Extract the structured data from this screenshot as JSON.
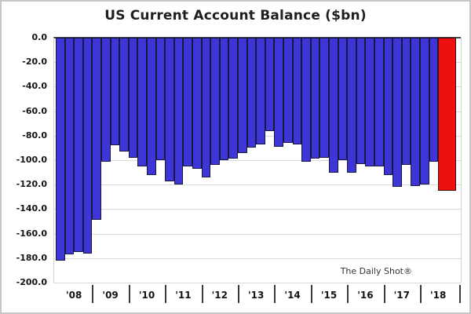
{
  "chart_data": {
    "type": "bar",
    "title": "US Current Account Balance ($bn)",
    "watermark": "The Daily Shot®",
    "ylabel": "",
    "xlabel": "",
    "ylim": [
      0,
      -200
    ],
    "ytick_step": 20,
    "grid": "horizontal",
    "legend": "none",
    "ytick_labels": [
      "0.0",
      "-20.0",
      "-40.0",
      "-60.0",
      "-80.0",
      "-100.0",
      "-120.0",
      "-140.0",
      "-160.0",
      "-180.0",
      "-200.0"
    ],
    "year_labels": [
      "'08",
      "'09",
      "'10",
      "'11",
      "'12",
      "'13",
      "'14",
      "'15",
      "'16",
      "'17",
      "'18"
    ],
    "colors": {
      "bar_fill": "#3e35d6",
      "bar_border": "#181843",
      "highlight_fill": "#ee100f",
      "highlight_border": "#3d0a0a",
      "gridline": "#dadada",
      "zero_line": "#4a4a4a",
      "text": "#141414"
    },
    "bars": [
      {
        "year": "2008",
        "quarter": "Q1",
        "value": -182
      },
      {
        "year": "2008",
        "quarter": "Q2",
        "value": -177
      },
      {
        "year": "2008",
        "quarter": "Q3",
        "value": -175
      },
      {
        "year": "2008",
        "quarter": "Q4",
        "value": -176
      },
      {
        "year": "2009",
        "quarter": "Q1",
        "value": -149
      },
      {
        "year": "2009",
        "quarter": "Q2",
        "value": -101
      },
      {
        "year": "2009",
        "quarter": "Q3",
        "value": -88
      },
      {
        "year": "2009",
        "quarter": "Q4",
        "value": -93
      },
      {
        "year": "2010",
        "quarter": "Q1",
        "value": -98
      },
      {
        "year": "2010",
        "quarter": "Q2",
        "value": -105
      },
      {
        "year": "2010",
        "quarter": "Q3",
        "value": -112
      },
      {
        "year": "2010",
        "quarter": "Q4",
        "value": -100
      },
      {
        "year": "2011",
        "quarter": "Q1",
        "value": -117
      },
      {
        "year": "2011",
        "quarter": "Q2",
        "value": -120
      },
      {
        "year": "2011",
        "quarter": "Q3",
        "value": -105
      },
      {
        "year": "2011",
        "quarter": "Q4",
        "value": -107
      },
      {
        "year": "2012",
        "quarter": "Q1",
        "value": -114
      },
      {
        "year": "2012",
        "quarter": "Q2",
        "value": -104
      },
      {
        "year": "2012",
        "quarter": "Q3",
        "value": -100
      },
      {
        "year": "2012",
        "quarter": "Q4",
        "value": -99
      },
      {
        "year": "2013",
        "quarter": "Q1",
        "value": -94
      },
      {
        "year": "2013",
        "quarter": "Q2",
        "value": -90
      },
      {
        "year": "2013",
        "quarter": "Q3",
        "value": -87
      },
      {
        "year": "2013",
        "quarter": "Q4",
        "value": -76
      },
      {
        "year": "2014",
        "quarter": "Q1",
        "value": -89
      },
      {
        "year": "2014",
        "quarter": "Q2",
        "value": -86
      },
      {
        "year": "2014",
        "quarter": "Q3",
        "value": -87
      },
      {
        "year": "2014",
        "quarter": "Q4",
        "value": -101
      },
      {
        "year": "2015",
        "quarter": "Q1",
        "value": -99
      },
      {
        "year": "2015",
        "quarter": "Q2",
        "value": -98
      },
      {
        "year": "2015",
        "quarter": "Q3",
        "value": -110
      },
      {
        "year": "2015",
        "quarter": "Q4",
        "value": -100
      },
      {
        "year": "2016",
        "quarter": "Q1",
        "value": -110
      },
      {
        "year": "2016",
        "quarter": "Q2",
        "value": -103
      },
      {
        "year": "2016",
        "quarter": "Q3",
        "value": -105
      },
      {
        "year": "2016",
        "quarter": "Q4",
        "value": -105
      },
      {
        "year": "2017",
        "quarter": "Q1",
        "value": -112
      },
      {
        "year": "2017",
        "quarter": "Q2",
        "value": -122
      },
      {
        "year": "2017",
        "quarter": "Q3",
        "value": -104
      },
      {
        "year": "2017",
        "quarter": "Q4",
        "value": -121
      },
      {
        "year": "2018",
        "quarter": "Q1",
        "value": -120
      },
      {
        "year": "2018",
        "quarter": "Q2",
        "value": -101
      },
      {
        "year": "2018",
        "quarter": "Q3",
        "value": -125,
        "highlight": true,
        "double_width": true
      }
    ]
  }
}
